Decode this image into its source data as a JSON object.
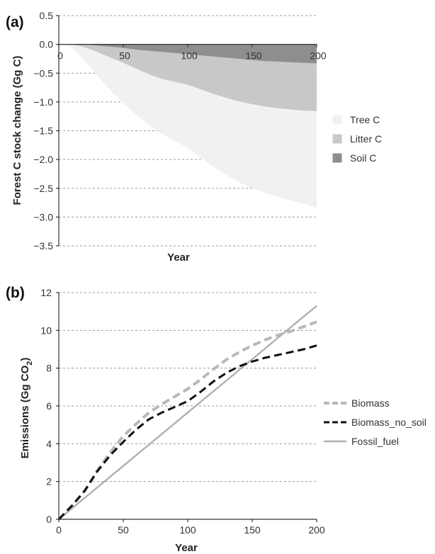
{
  "chart_data": [
    {
      "panel": "(a)",
      "type": "area",
      "xlabel": "Year",
      "ylabel": "Forest C  stock  change (Gg C)",
      "xlim": [
        0,
        200
      ],
      "ylim": [
        -3.5,
        0.5
      ],
      "x_ticks": [
        0,
        50,
        100,
        150,
        200
      ],
      "y_ticks": [
        "0.5",
        "0.0",
        "−0.5",
        "−1.0",
        "−1.5",
        "−2.0",
        "−2.5",
        "−3.0",
        "−3.5"
      ],
      "y_tick_values": [
        0.5,
        0.0,
        -0.5,
        -1.0,
        -1.5,
        -2.0,
        -2.5,
        -3.0,
        -3.5
      ],
      "legend_position": "right",
      "grid": true,
      "x": [
        0,
        10,
        20,
        30,
        40,
        50,
        60,
        70,
        80,
        90,
        100,
        110,
        120,
        130,
        140,
        150,
        160,
        170,
        180,
        190,
        200
      ],
      "series": [
        {
          "name": "Tree C",
          "color": "#f1f1f1",
          "values": [
            0,
            -0.05,
            -0.28,
            -0.55,
            -0.8,
            -1.02,
            -1.22,
            -1.4,
            -1.55,
            -1.68,
            -1.8,
            -1.97,
            -2.13,
            -2.27,
            -2.4,
            -2.5,
            -2.58,
            -2.65,
            -2.71,
            -2.77,
            -2.84
          ]
        },
        {
          "name": "Litter C",
          "color": "#c8c8c8",
          "values": [
            0,
            0,
            -0.05,
            -0.13,
            -0.23,
            -0.32,
            -0.42,
            -0.52,
            -0.6,
            -0.65,
            -0.7,
            -0.78,
            -0.86,
            -0.93,
            -0.99,
            -1.04,
            -1.08,
            -1.11,
            -1.13,
            -1.15,
            -1.16
          ]
        },
        {
          "name": "Soil C",
          "color": "#8e8e8e",
          "values": [
            0,
            0,
            0,
            -0.02,
            -0.04,
            -0.06,
            -0.09,
            -0.11,
            -0.13,
            -0.15,
            -0.17,
            -0.19,
            -0.21,
            -0.23,
            -0.25,
            -0.27,
            -0.29,
            -0.3,
            -0.31,
            -0.32,
            -0.33
          ]
        }
      ]
    },
    {
      "panel": "(b)",
      "type": "line",
      "xlabel": "Year",
      "ylabel": "Emissions (Gg CO",
      "ylabel_sub": "2",
      "ylabel_end": ")",
      "xlim": [
        0,
        200
      ],
      "ylim": [
        0,
        12
      ],
      "x_ticks": [
        0,
        50,
        100,
        150,
        200
      ],
      "y_ticks": [
        0,
        2,
        4,
        6,
        8,
        10,
        12
      ],
      "legend_position": "right",
      "grid": true,
      "x": [
        0,
        10,
        20,
        30,
        40,
        50,
        60,
        70,
        80,
        90,
        100,
        110,
        120,
        130,
        140,
        150,
        160,
        170,
        180,
        190,
        200
      ],
      "series": [
        {
          "name": "Biomass",
          "color": "#b8b8b8",
          "style": "dashed",
          "values": [
            0,
            0.7,
            1.5,
            2.6,
            3.55,
            4.4,
            5.05,
            5.65,
            6.1,
            6.5,
            6.9,
            7.4,
            7.95,
            8.45,
            8.85,
            9.2,
            9.5,
            9.75,
            9.95,
            10.2,
            10.45
          ]
        },
        {
          "name": "Biomass_no_soil",
          "color": "#111111",
          "style": "dashed",
          "values": [
            0,
            0.7,
            1.5,
            2.55,
            3.4,
            4.1,
            4.75,
            5.3,
            5.65,
            5.95,
            6.25,
            6.75,
            7.3,
            7.75,
            8.1,
            8.35,
            8.55,
            8.7,
            8.85,
            9.0,
            9.2
          ]
        },
        {
          "name": "Fossil_fuel",
          "color": "#b0b0b0",
          "style": "solid",
          "values": [
            0,
            0.565,
            1.13,
            1.695,
            2.26,
            2.825,
            3.39,
            3.955,
            4.52,
            5.085,
            5.65,
            6.215,
            6.78,
            7.345,
            7.91,
            8.475,
            9.04,
            9.605,
            10.17,
            10.735,
            11.3
          ]
        }
      ]
    }
  ]
}
